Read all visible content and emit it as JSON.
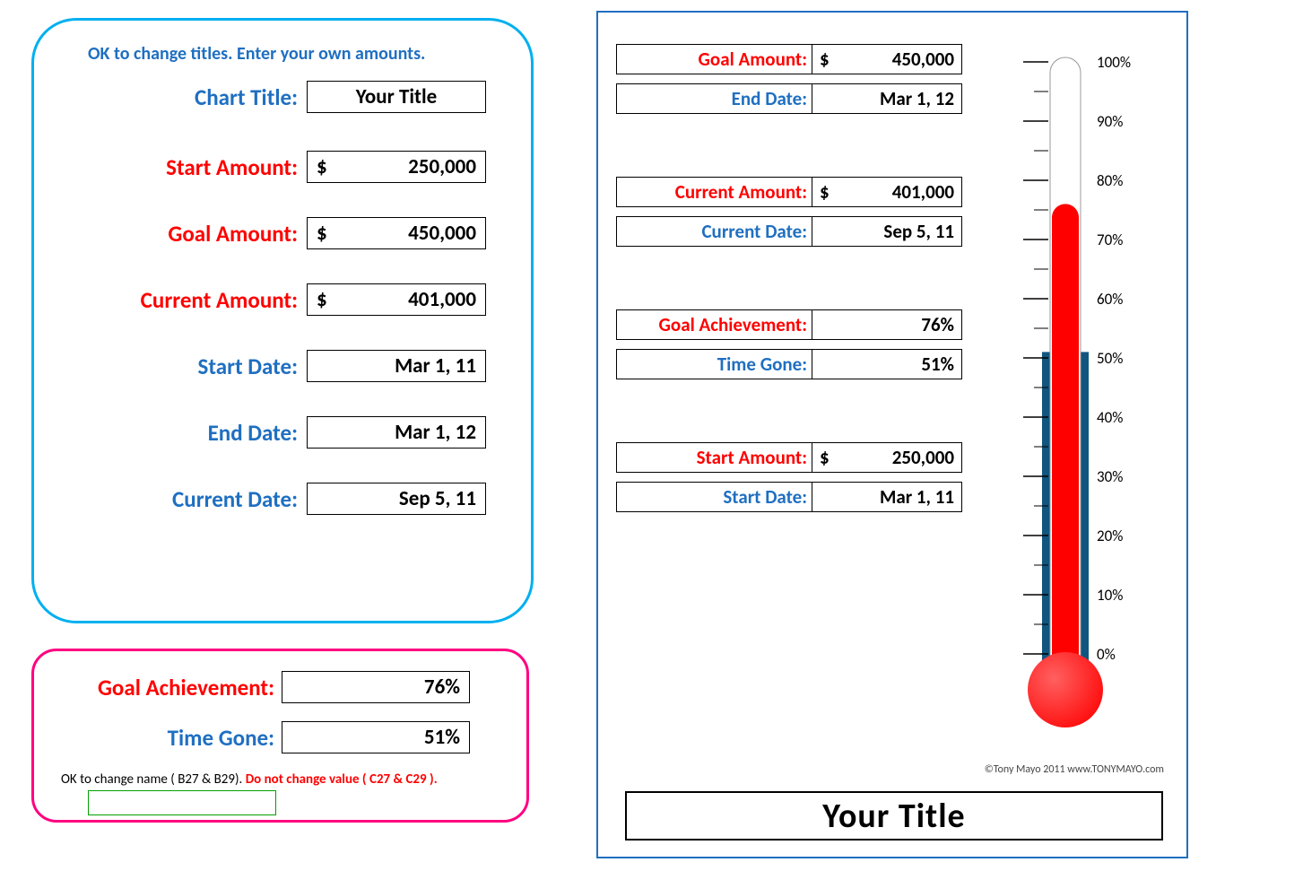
{
  "inputs": {
    "header": "OK to change titles. Enter your own amounts.",
    "chart_title_label": "Chart Title:",
    "chart_title": "Your Title",
    "start_amount_label": "Start Amount:",
    "start_amount": "250,000",
    "goal_amount_label": "Goal Amount:",
    "goal_amount": "450,000",
    "current_amount_label": "Current Amount:",
    "current_amount": "401,000",
    "start_date_label": "Start Date:",
    "start_date": "Mar 1, 11",
    "end_date_label": "End Date:",
    "end_date": "Mar 1, 12",
    "current_date_label": "Current Date:",
    "current_date": "Sep 5, 11",
    "currency": "$"
  },
  "results": {
    "goal_achievement_label": "Goal Achievement:",
    "goal_achievement": "76%",
    "time_gone_label": "Time Gone:",
    "time_gone": "51%",
    "footnote_a": "OK to change name ( B27 & B29). ",
    "footnote_b": "Do not change value ( C27 & C29 )."
  },
  "chart": {
    "goal_amount_label": "Goal Amount:",
    "goal_amount": "450,000",
    "end_date_label": "End Date:",
    "end_date": "Mar 1, 12",
    "current_amount_label": "Current Amount:",
    "current_amount": "401,000",
    "current_date_label": "Current Date:",
    "current_date": "Sep 5, 11",
    "goal_achievement_label": "Goal Achievement:",
    "goal_achievement": "76%",
    "time_gone_label": "Time Gone:",
    "time_gone": "51%",
    "start_amount_label": "Start Amount:",
    "start_amount": "250,000",
    "start_date_label": "Start Date:",
    "start_date": "Mar 1, 11",
    "title": "Your Title",
    "copyright": "©Tony Mayo 2011 www.TONYMAYO.com",
    "currency": "$"
  },
  "thermometer": {
    "fill_pct": 76,
    "time_pct": 51,
    "fill_color": "#ff0000",
    "time_color": "#10567e",
    "tube_border": "#999999",
    "bulb_color": "#ff1010",
    "tick_color": "#000000",
    "label_color": "#000000",
    "label_fontsize": 17,
    "ticks": [
      0,
      10,
      20,
      30,
      40,
      50,
      60,
      70,
      80,
      90,
      100
    ],
    "major_every": 10,
    "minor_per_major": 1
  },
  "colors": {
    "blue": "#1f6fc1",
    "cyan_border": "#00b0f0",
    "pink_border": "#ff0080",
    "red": "#ff0000"
  }
}
